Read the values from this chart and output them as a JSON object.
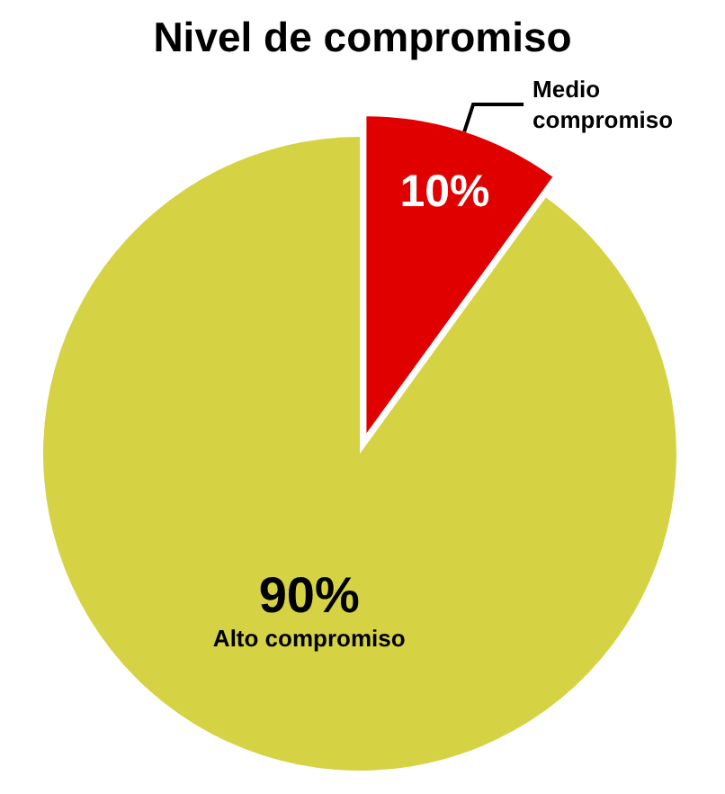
{
  "chart_data": {
    "type": "pie",
    "title": "Nivel de compromiso",
    "categories": [
      "Medio compromiso",
      "Alto compromiso"
    ],
    "values": [
      10,
      90
    ],
    "colors": [
      "#e00000",
      "#d5d344"
    ],
    "value_labels": [
      "10%",
      "90%"
    ],
    "legend": false
  }
}
